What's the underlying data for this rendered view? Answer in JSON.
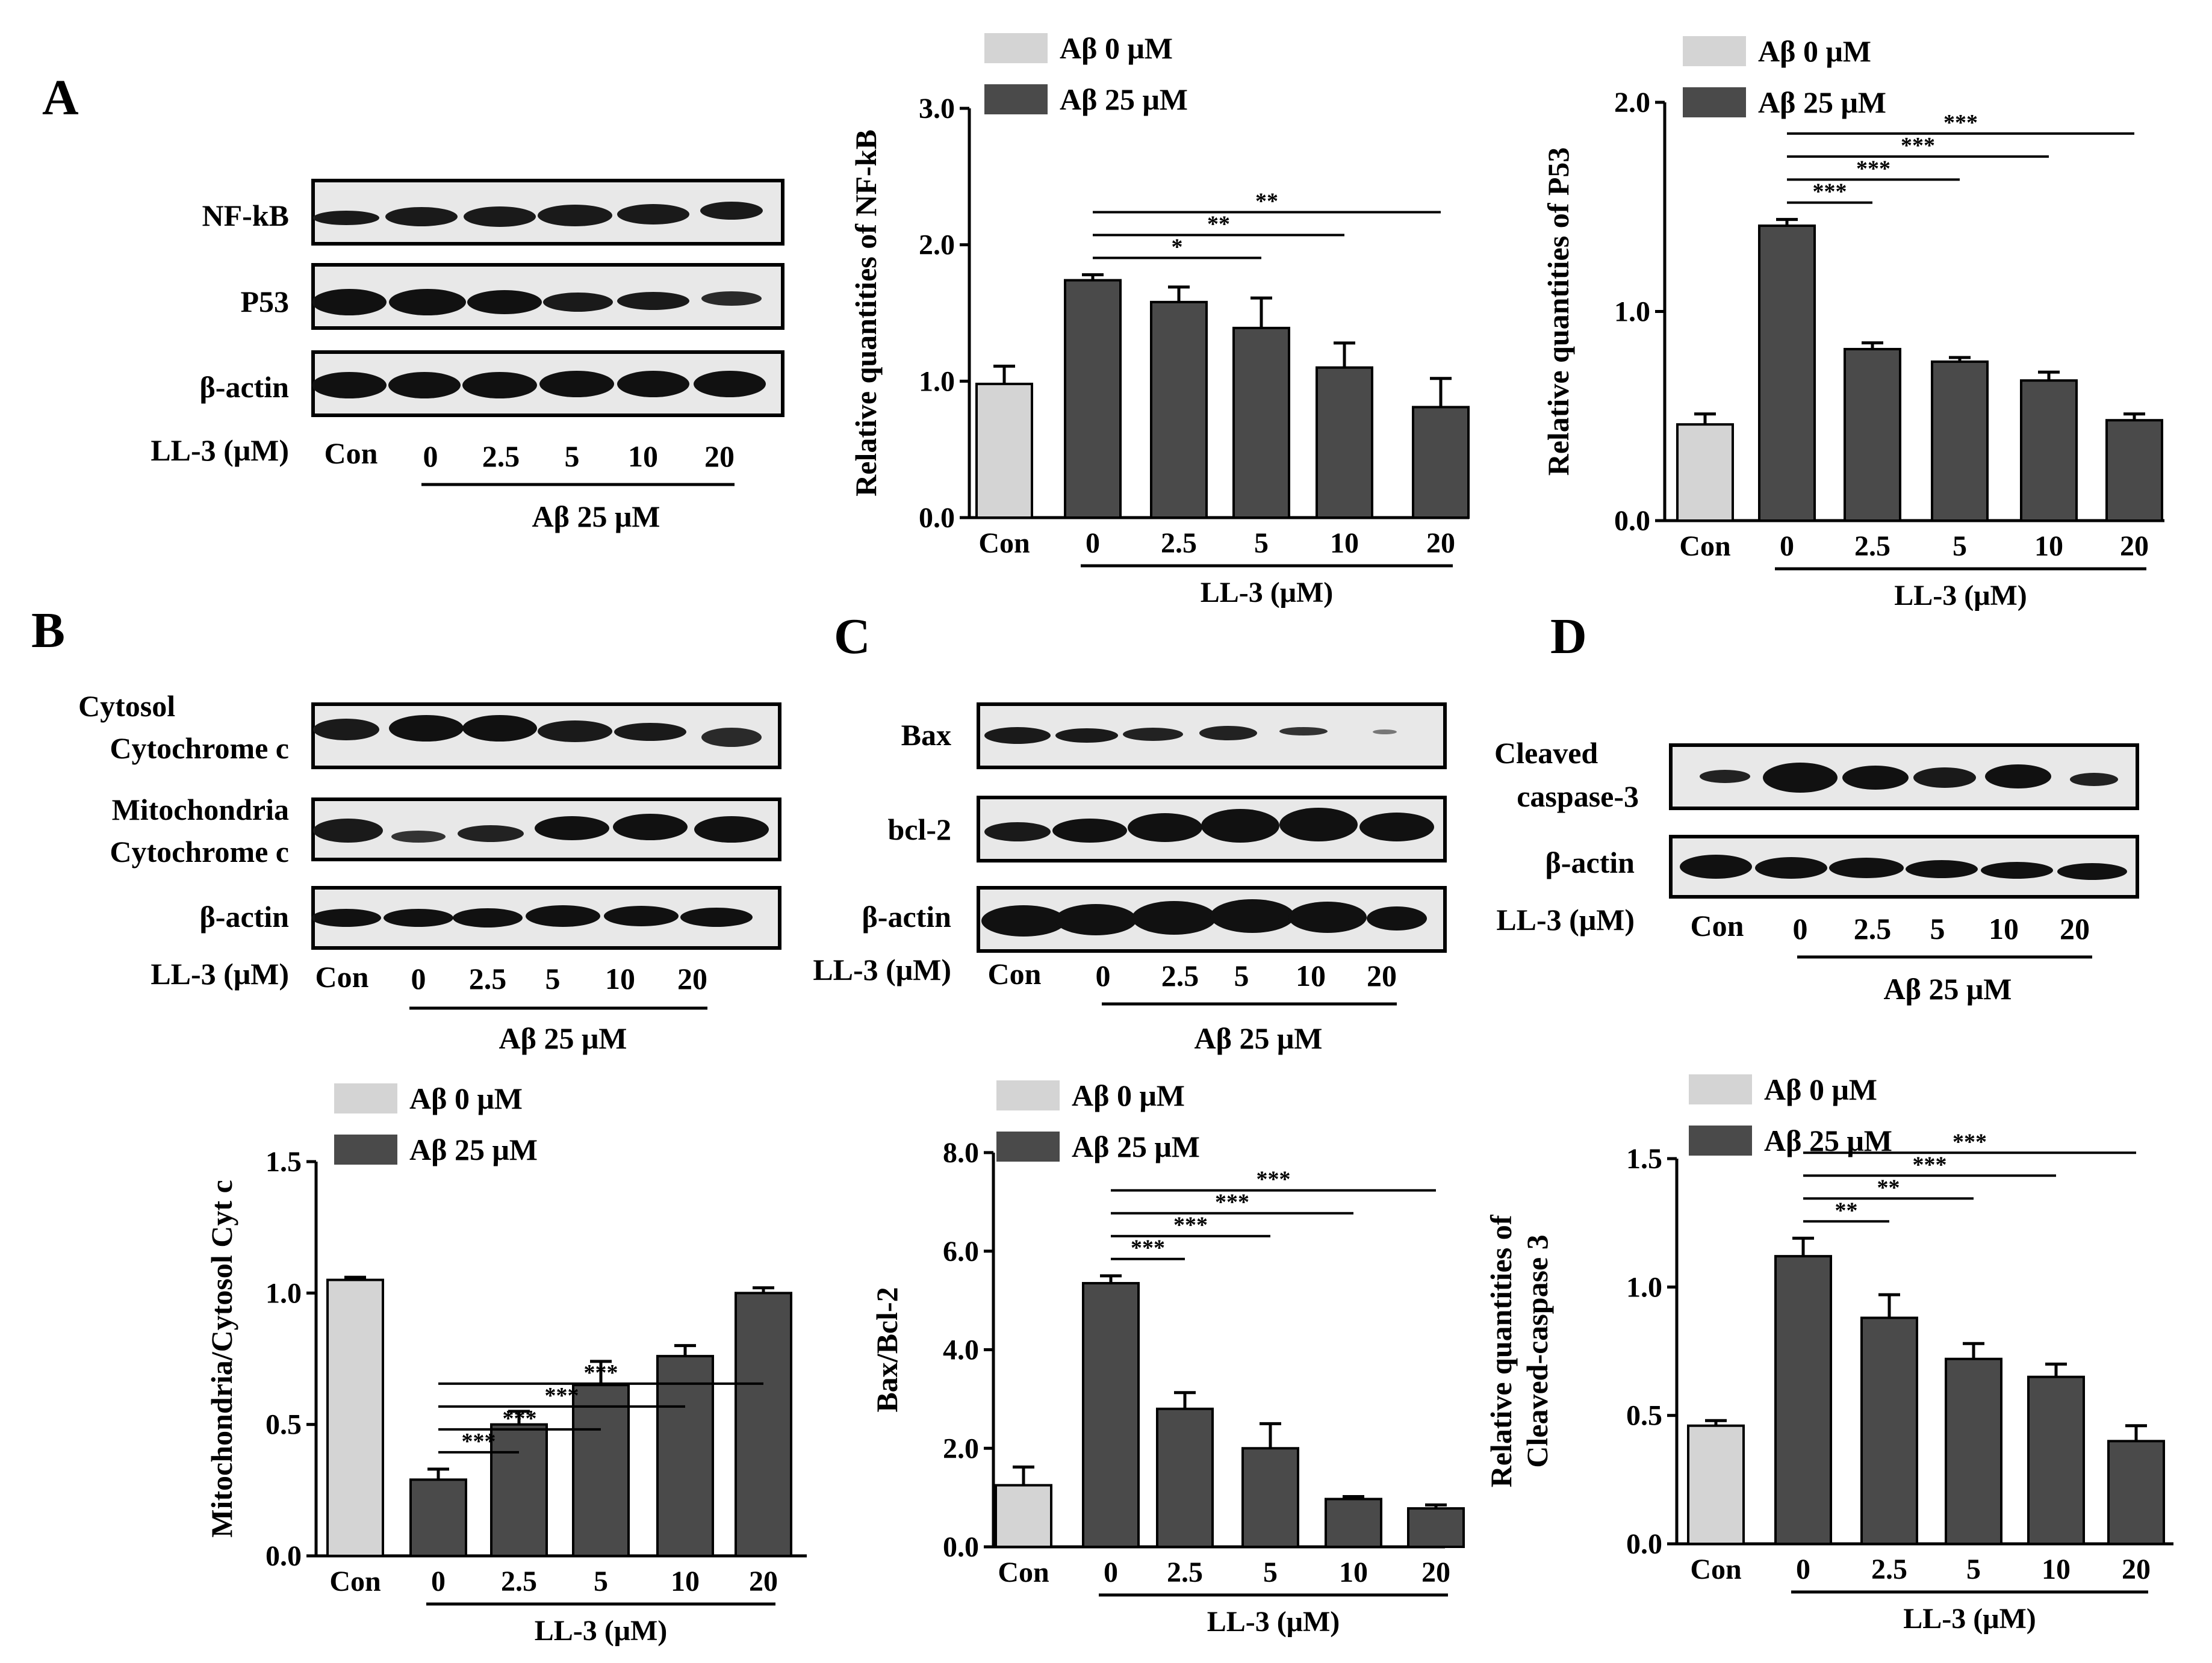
{
  "colors": {
    "control": "#d4d4d4",
    "treated": "#4a4a4a",
    "outline": "#000000"
  },
  "legend": {
    "a0": "Aβ   0 μM",
    "a25": "Aβ 25 μM"
  },
  "panels": {
    "A": "A",
    "B": "B",
    "C": "C",
    "D": "D"
  },
  "lanes": [
    "Con",
    "0",
    "2.5",
    "5",
    "10",
    "20"
  ],
  "axis_common": {
    "xgroup": "LL-3 (μM)"
  },
  "blots": [
    {
      "panel": "A",
      "rows": [
        {
          "label": "NF-kB"
        },
        {
          "label": "P53"
        },
        {
          "label": "β-actin"
        }
      ],
      "treatment_label": "LL-3 (μM)",
      "group_label": "Aβ 25 μM"
    },
    {
      "panel": "B",
      "rows": [
        {
          "label": "Cytosol"
        },
        {
          "label": "Cytochrome c"
        },
        {
          "label": "Mitochondria"
        },
        {
          "label": "Cytochrome c"
        },
        {
          "label": "β-actin"
        }
      ],
      "treatment_label": "LL-3 (μM)",
      "group_label": "Aβ 25 μM"
    },
    {
      "panel": "C",
      "rows": [
        {
          "label": "Bax"
        },
        {
          "label": "bcl-2"
        },
        {
          "label": "β-actin"
        }
      ],
      "treatment_label": "LL-3 (μM)",
      "group_label": "Aβ 25 μM"
    },
    {
      "panel": "D",
      "rows": [
        {
          "label": "Cleaved"
        },
        {
          "label": "caspase-3"
        },
        {
          "label": "β-actin"
        }
      ],
      "treatment_label": "LL-3 (μM)",
      "group_label": "Aβ 25 μM"
    }
  ],
  "chart_data": [
    {
      "id": "nfkb",
      "type": "bar",
      "ylabel": "Relative quantities of NF-kB",
      "xlabel": "LL-3 (μM)",
      "categories": [
        "Con",
        "0",
        "2.5",
        "5",
        "10",
        "20"
      ],
      "series": [
        {
          "name": "Aβ 0 μM",
          "values": [
            0.98,
            null,
            null,
            null,
            null,
            null
          ]
        },
        {
          "name": "Aβ 25 μM",
          "values": [
            null,
            1.74,
            1.58,
            1.39,
            1.1,
            0.81
          ]
        }
      ],
      "errors": [
        0.13,
        0.04,
        0.11,
        0.22,
        0.18,
        0.21
      ],
      "ylim": [
        0,
        3.0
      ],
      "yticks": [
        0,
        1.0,
        2.0,
        3.0
      ],
      "ytick_labels": [
        "0.0",
        "1.0",
        "2.0",
        "3.0"
      ],
      "sig": [
        {
          "from": 1,
          "to": 3,
          "text": "*"
        },
        {
          "from": 1,
          "to": 4,
          "text": "**"
        },
        {
          "from": 1,
          "to": 5,
          "text": "**"
        }
      ]
    },
    {
      "id": "p53",
      "type": "bar",
      "ylabel": "Relative quantities of P53",
      "xlabel": "LL-3 (μM)",
      "categories": [
        "Con",
        "0",
        "2.5",
        "5",
        "10",
        "20"
      ],
      "series": [
        {
          "name": "Aβ 0 μM",
          "values": [
            0.46,
            null,
            null,
            null,
            null,
            null
          ]
        },
        {
          "name": "Aβ 25 μM",
          "values": [
            null,
            1.41,
            0.82,
            0.76,
            0.67,
            0.48
          ]
        }
      ],
      "errors": [
        0.05,
        0.03,
        0.03,
        0.02,
        0.04,
        0.03
      ],
      "ylim": [
        0,
        2.0
      ],
      "yticks": [
        0,
        1.0,
        2.0
      ],
      "ytick_labels": [
        "0.0",
        "1.0",
        "2.0"
      ],
      "sig": [
        {
          "from": 1,
          "to": 2,
          "text": "***"
        },
        {
          "from": 1,
          "to": 3,
          "text": "***"
        },
        {
          "from": 1,
          "to": 4,
          "text": "***"
        },
        {
          "from": 1,
          "to": 5,
          "text": "***"
        }
      ]
    },
    {
      "id": "cytc",
      "type": "bar",
      "ylabel": "Mitochondria/Cytosol Cyt c",
      "xlabel": "LL-3 (μM)",
      "categories": [
        "Con",
        "0",
        "2.5",
        "5",
        "10",
        "20"
      ],
      "series": [
        {
          "name": "Aβ 0 μM",
          "values": [
            1.05,
            null,
            null,
            null,
            null,
            null
          ]
        },
        {
          "name": "Aβ 25 μM",
          "values": [
            null,
            0.29,
            0.5,
            0.65,
            0.76,
            1.0
          ]
        }
      ],
      "errors": [
        0.01,
        0.04,
        0.05,
        0.09,
        0.04,
        0.02
      ],
      "ylim": [
        0,
        1.5
      ],
      "yticks": [
        0,
        0.5,
        1.0,
        1.5
      ],
      "ytick_labels": [
        "0.0",
        "0.5",
        "1.0",
        "1.5"
      ],
      "sig": [
        {
          "from": 1,
          "to": 2,
          "text": "***"
        },
        {
          "from": 1,
          "to": 3,
          "text": "***"
        },
        {
          "from": 1,
          "to": 4,
          "text": "***"
        },
        {
          "from": 1,
          "to": 5,
          "text": "***"
        }
      ]
    },
    {
      "id": "baxbcl",
      "type": "bar",
      "ylabel": "Bax/Bcl-2",
      "xlabel": "LL-3 (μM)",
      "categories": [
        "Con",
        "0",
        "2.5",
        "5",
        "10",
        "20"
      ],
      "series": [
        {
          "name": "Aβ 0 μM",
          "values": [
            1.25,
            null,
            null,
            null,
            null,
            null
          ]
        },
        {
          "name": "Aβ 25 μM",
          "values": [
            null,
            5.35,
            2.8,
            2.0,
            0.97,
            0.78
          ]
        }
      ],
      "errors": [
        0.37,
        0.15,
        0.33,
        0.5,
        0.05,
        0.07
      ],
      "ylim": [
        0,
        8.0
      ],
      "yticks": [
        0,
        2.0,
        4.0,
        6.0,
        8.0
      ],
      "ytick_labels": [
        "0.0",
        "2.0",
        "4.0",
        "6.0",
        "8.0"
      ],
      "sig": [
        {
          "from": 1,
          "to": 2,
          "text": "***"
        },
        {
          "from": 1,
          "to": 3,
          "text": "***"
        },
        {
          "from": 1,
          "to": 4,
          "text": "***"
        },
        {
          "from": 1,
          "to": 5,
          "text": "***"
        }
      ]
    },
    {
      "id": "casp3",
      "type": "bar",
      "ylabel": [
        "Relative quantities of",
        "Cleaved-caspase 3"
      ],
      "xlabel": "LL-3 (μM)",
      "categories": [
        "Con",
        "0",
        "2.5",
        "5",
        "10",
        "20"
      ],
      "series": [
        {
          "name": "Aβ 0 μM",
          "values": [
            0.46,
            null,
            null,
            null,
            null,
            null
          ]
        },
        {
          "name": "Aβ 25 μM",
          "values": [
            null,
            1.12,
            0.88,
            0.72,
            0.65,
            0.4
          ]
        }
      ],
      "errors": [
        0.02,
        0.07,
        0.09,
        0.06,
        0.05,
        0.06
      ],
      "ylim": [
        0,
        1.5
      ],
      "yticks": [
        0,
        0.5,
        1.0,
        1.5
      ],
      "ytick_labels": [
        "0.0",
        "0.5",
        "1.0",
        "1.5"
      ],
      "sig": [
        {
          "from": 1,
          "to": 2,
          "text": "**"
        },
        {
          "from": 1,
          "to": 3,
          "text": "**"
        },
        {
          "from": 1,
          "to": 4,
          "text": "***"
        },
        {
          "from": 1,
          "to": 5,
          "text": "***"
        }
      ]
    }
  ]
}
